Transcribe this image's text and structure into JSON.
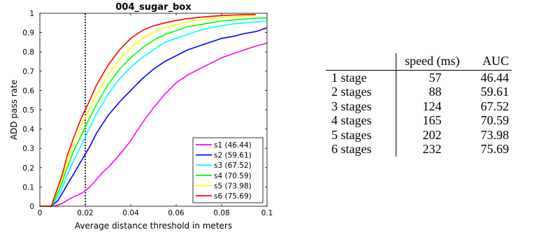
{
  "chart_data": {
    "type": "line",
    "title": "004_sugar_box",
    "xlabel": "Average distance threshold in meters",
    "ylabel": "ADD pass rate",
    "xlim": [
      0,
      0.1
    ],
    "ylim": [
      0,
      1
    ],
    "xticks": [
      "0",
      "0.02",
      "0.04",
      "0.06",
      "0.08",
      "0.1"
    ],
    "yticks": [
      "0",
      "0.1",
      "0.2",
      "0.3",
      "0.4",
      "0.5",
      "0.6",
      "0.7",
      "0.8",
      "0.9",
      "1"
    ],
    "grid": false,
    "legend_position": "bottom-right",
    "vline_x": 0.02,
    "series": [
      {
        "name": "s1 (46.44)",
        "color": "#ff00ff",
        "x": [
          0,
          0.006,
          0.009,
          0.012,
          0.015,
          0.018,
          0.02,
          0.022,
          0.025,
          0.028,
          0.03,
          0.033,
          0.036,
          0.04,
          0.045,
          0.05,
          0.055,
          0.06,
          0.065,
          0.07,
          0.075,
          0.08,
          0.085,
          0.09,
          0.095,
          0.1
        ],
        "values": [
          0,
          0,
          0.01,
          0.03,
          0.05,
          0.065,
          0.08,
          0.1,
          0.14,
          0.18,
          0.2,
          0.24,
          0.28,
          0.34,
          0.43,
          0.51,
          0.58,
          0.64,
          0.68,
          0.71,
          0.74,
          0.77,
          0.79,
          0.81,
          0.83,
          0.845
        ]
      },
      {
        "name": "s2 (59.61)",
        "color": "#0000ff",
        "x": [
          0,
          0.005,
          0.008,
          0.01,
          0.012,
          0.015,
          0.018,
          0.02,
          0.022,
          0.025,
          0.03,
          0.035,
          0.04,
          0.045,
          0.05,
          0.055,
          0.06,
          0.065,
          0.07,
          0.075,
          0.08,
          0.085,
          0.09,
          0.095,
          0.1
        ],
        "values": [
          0,
          0,
          0.03,
          0.07,
          0.11,
          0.17,
          0.23,
          0.27,
          0.31,
          0.38,
          0.47,
          0.54,
          0.6,
          0.66,
          0.71,
          0.75,
          0.78,
          0.81,
          0.83,
          0.85,
          0.87,
          0.88,
          0.895,
          0.905,
          0.925
        ]
      },
      {
        "name": "s3 (67.52)",
        "color": "#00ffff",
        "x": [
          0,
          0.005,
          0.008,
          0.01,
          0.012,
          0.015,
          0.018,
          0.02,
          0.022,
          0.025,
          0.03,
          0.035,
          0.04,
          0.045,
          0.05,
          0.055,
          0.06,
          0.065,
          0.07,
          0.075,
          0.08,
          0.085,
          0.09,
          0.095,
          0.1
        ],
        "values": [
          0,
          0,
          0.05,
          0.1,
          0.16,
          0.24,
          0.31,
          0.36,
          0.41,
          0.48,
          0.58,
          0.66,
          0.72,
          0.77,
          0.81,
          0.85,
          0.87,
          0.89,
          0.91,
          0.925,
          0.935,
          0.945,
          0.95,
          0.955,
          0.96
        ]
      },
      {
        "name": "s4 (70.59)",
        "color": "#00ff00",
        "x": [
          0,
          0.005,
          0.008,
          0.01,
          0.012,
          0.015,
          0.018,
          0.02,
          0.022,
          0.025,
          0.03,
          0.035,
          0.04,
          0.045,
          0.05,
          0.055,
          0.06,
          0.065,
          0.07,
          0.075,
          0.08,
          0.085,
          0.09,
          0.095,
          0.1
        ],
        "values": [
          0,
          0,
          0.07,
          0.13,
          0.2,
          0.29,
          0.36,
          0.41,
          0.46,
          0.53,
          0.63,
          0.71,
          0.77,
          0.82,
          0.86,
          0.89,
          0.91,
          0.93,
          0.94,
          0.95,
          0.96,
          0.965,
          0.97,
          0.975,
          0.975
        ]
      },
      {
        "name": "s5 (73.98)",
        "color": "#ffff00",
        "x": [
          0,
          0.005,
          0.008,
          0.01,
          0.012,
          0.015,
          0.018,
          0.02,
          0.022,
          0.025,
          0.03,
          0.035,
          0.04,
          0.045,
          0.05,
          0.055,
          0.06,
          0.065,
          0.07,
          0.075,
          0.08,
          0.085,
          0.09,
          0.095
        ],
        "values": [
          0,
          0,
          0.09,
          0.15,
          0.23,
          0.33,
          0.41,
          0.46,
          0.51,
          0.58,
          0.68,
          0.76,
          0.82,
          0.87,
          0.9,
          0.925,
          0.94,
          0.955,
          0.965,
          0.972,
          0.978,
          0.983,
          0.986,
          0.988
        ]
      },
      {
        "name": "s6 (75.69)",
        "color": "#ff0000",
        "x": [
          0,
          0.005,
          0.008,
          0.01,
          0.012,
          0.015,
          0.018,
          0.02,
          0.022,
          0.025,
          0.03,
          0.035,
          0.04,
          0.045,
          0.05,
          0.055,
          0.06,
          0.065,
          0.07,
          0.075,
          0.08,
          0.085,
          0.09,
          0.095
        ],
        "values": [
          0,
          0,
          0.1,
          0.17,
          0.26,
          0.36,
          0.45,
          0.5,
          0.55,
          0.63,
          0.73,
          0.81,
          0.87,
          0.91,
          0.935,
          0.95,
          0.963,
          0.972,
          0.979,
          0.984,
          0.988,
          0.991,
          0.993,
          0.994
        ]
      }
    ]
  },
  "results_table": {
    "headers": [
      "",
      "speed (ms)",
      "AUC"
    ],
    "rows": [
      {
        "label": "1 stage",
        "speed": "57",
        "auc": "46.44"
      },
      {
        "label": "2 stages",
        "speed": "88",
        "auc": "59.61"
      },
      {
        "label": "3 stages",
        "speed": "124",
        "auc": "67.52"
      },
      {
        "label": "4 stages",
        "speed": "165",
        "auc": "70.59"
      },
      {
        "label": "5 stages",
        "speed": "202",
        "auc": "73.98"
      },
      {
        "label": "6 stages",
        "speed": "232",
        "auc": "75.69"
      }
    ]
  }
}
